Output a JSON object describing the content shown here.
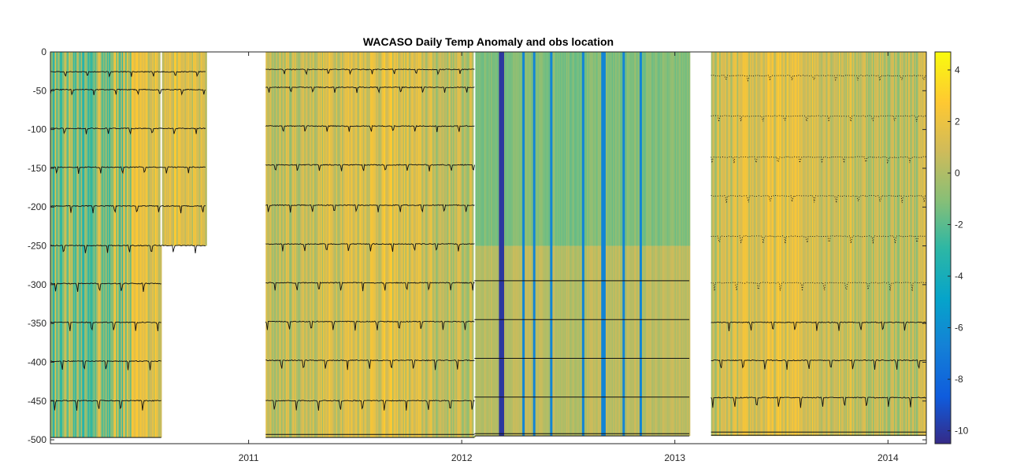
{
  "chart_data": {
    "type": "heatmap",
    "title": "WACASO Daily Temp Anomaly and obs location",
    "xlabel": "",
    "ylabel": "",
    "xlim": [
      2010.07,
      2014.18
    ],
    "ylim": [
      -505,
      0
    ],
    "x_ticks": [
      2011,
      2012,
      2013,
      2014
    ],
    "x_tick_labels": [
      "2011",
      "2012",
      "2013",
      "2014"
    ],
    "y_ticks": [
      0,
      -50,
      -100,
      -150,
      -200,
      -250,
      -300,
      -350,
      -400,
      -450,
      -500
    ],
    "y_tick_labels": [
      "0",
      "-50",
      "-100",
      "-150",
      "-200",
      "-250",
      "-300",
      "-350",
      "-400",
      "-450",
      "-500"
    ],
    "colorbar": {
      "clim": [
        -10.5,
        4.7
      ],
      "colormap": "parula",
      "ticks": [
        4,
        2,
        0,
        -2,
        -4,
        -6,
        -8,
        -10
      ],
      "tick_labels": [
        "4",
        "2",
        "0",
        "-2",
        "-4",
        "-6",
        "-8",
        "-10"
      ]
    },
    "grid": false,
    "deployments": [
      {
        "start": 2010.07,
        "end": 2010.59,
        "bottom": -497,
        "obs_depths": [
          -25,
          -48,
          -98,
          -148,
          -198,
          -249,
          -298,
          -348,
          -398,
          -449,
          -497
        ]
      },
      {
        "start": 2010.59,
        "end": 2010.8,
        "bottom": -250,
        "obs_depths": [
          -25,
          -48,
          -98,
          -148,
          -198,
          -249
        ]
      },
      {
        "start": 2011.08,
        "end": 2012.06,
        "bottom": -497,
        "obs_depths": [
          -22,
          -45,
          -95,
          -145,
          -197,
          -247,
          -297,
          -347,
          -397,
          -449,
          -493,
          -497
        ]
      },
      {
        "start": 2012.06,
        "end": 2013.07,
        "bottom": -495,
        "obs_depths": [
          -295,
          -345,
          -395,
          -445,
          -492,
          -495
        ]
      },
      {
        "start": 2013.17,
        "end": 2014.18,
        "bottom": -495,
        "obs_depths": [
          -30,
          -82,
          -135,
          -185,
          -237,
          -297,
          -348,
          -397,
          -445,
          -490,
          -494
        ]
      }
    ],
    "cold_events_2012": [
      2012.18,
      2012.19,
      2012.29,
      2012.34,
      2012.42,
      2012.57,
      2012.66,
      2012.67,
      2012.76,
      2012.84
    ]
  }
}
